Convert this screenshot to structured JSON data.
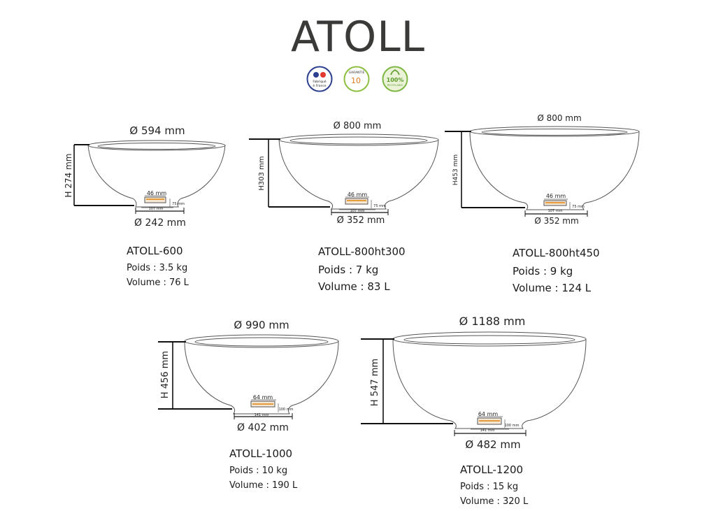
{
  "title": "ATOLL",
  "badges": {
    "france_text_1": "Fabriqué",
    "france_text_2": "è France",
    "garantie_top": "GARANTIE",
    "garantie_num": "10",
    "recyclable_pct": "100%",
    "recyclable_text": "RECYCLABLE"
  },
  "products": [
    {
      "name": "ATOLL-600",
      "poids": "Poids : 3.5 kg",
      "volume": "Volume : 76 L",
      "top_diameter": "Ø 594 mm",
      "height": "H 274 mm",
      "base_diameter": "Ø 242  mm",
      "drain_w": "46 mm",
      "drain_h": "75 mm",
      "drain_b": "107 mm"
    },
    {
      "name": "ATOLL-800ht300",
      "poids": "Poids : 7 kg",
      "volume": "Volume : 83 L",
      "top_diameter": "Ø 800 mm",
      "height": "H303 mm",
      "base_diameter": "Ø 352 mm",
      "drain_w": "46 mm",
      "drain_h": "75 mm",
      "drain_b": "107 mm"
    },
    {
      "name": "ATOLL-800ht450",
      "poids": "Poids : 9 kg",
      "volume": "Volume : 124 L",
      "top_diameter": "Ø 800   mm",
      "height": "H453 mm",
      "base_diameter": "Ø  352 mm",
      "drain_w": "46 mm",
      "drain_h": "75 mm",
      "drain_b": "107 mm"
    },
    {
      "name": "ATOLL-1000",
      "poids": "Poids : 10 kg",
      "volume": "Volume : 190 L",
      "top_diameter": "Ø 990 mm",
      "height": "H 456 mm",
      "base_diameter": "Ø 402 mm",
      "drain_w": "64 mm",
      "drain_h": "100 mm",
      "drain_b": "141 mm"
    },
    {
      "name": "ATOLL-1200",
      "poids": "Poids : 15 kg",
      "volume": "Volume : 320 L",
      "top_diameter": "Ø 1188 mm",
      "height": "H 547 mm",
      "base_diameter": "Ø 482 mm",
      "drain_w": "64 mm",
      "drain_h": "100 mm",
      "drain_b": "141 mm"
    }
  ]
}
